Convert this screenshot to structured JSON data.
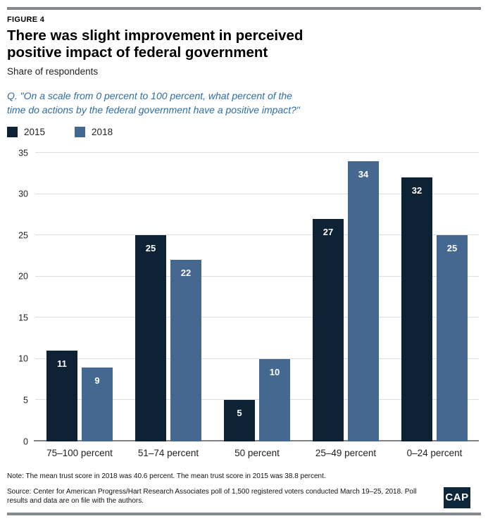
{
  "header": {
    "figure_label": "FIGURE 4",
    "title": "There was slight improvement in perceived positive impact of federal government",
    "subtitle": "Share of respondents",
    "question": "Q. \"On a scale from 0 percent to 100 percent, what percent of the time do actions by the federal government have a positive impact?\""
  },
  "chart_data": {
    "type": "bar",
    "categories": [
      "75–100 percent",
      "51–74 percent",
      "50 percent",
      "25–49 percent",
      "0–24 percent"
    ],
    "series": [
      {
        "name": "2015",
        "color": "#0e2236",
        "values": [
          11,
          25,
          5,
          27,
          32
        ]
      },
      {
        "name": "2018",
        "color": "#44688f",
        "values": [
          9,
          22,
          10,
          34,
          25
        ]
      }
    ],
    "title": "There was slight improvement in perceived positive impact of federal government",
    "xlabel": "",
    "ylabel": "Share of respondents",
    "ylim": [
      0,
      35
    ],
    "ytick_step": 5,
    "grid": true,
    "legend_position": "top-left",
    "value_labels": true
  },
  "footer": {
    "note": "Note: The mean trust score in 2018 was 40.6 percent. The mean trust score in 2015 was 38.8 percent.",
    "source": "Source: Center for American Progress/Hart Research Associates poll of 1,500 registered voters conducted March 19–25, 2018. Poll results and data are on file with the authors.",
    "logo_text": "CAP"
  },
  "colors": {
    "navy_2015": "#0e2236",
    "steel_2018": "#44688f",
    "question_blue": "#2d6da3",
    "rule_gray": "#84878c",
    "gridline_gray": "#dedede"
  }
}
